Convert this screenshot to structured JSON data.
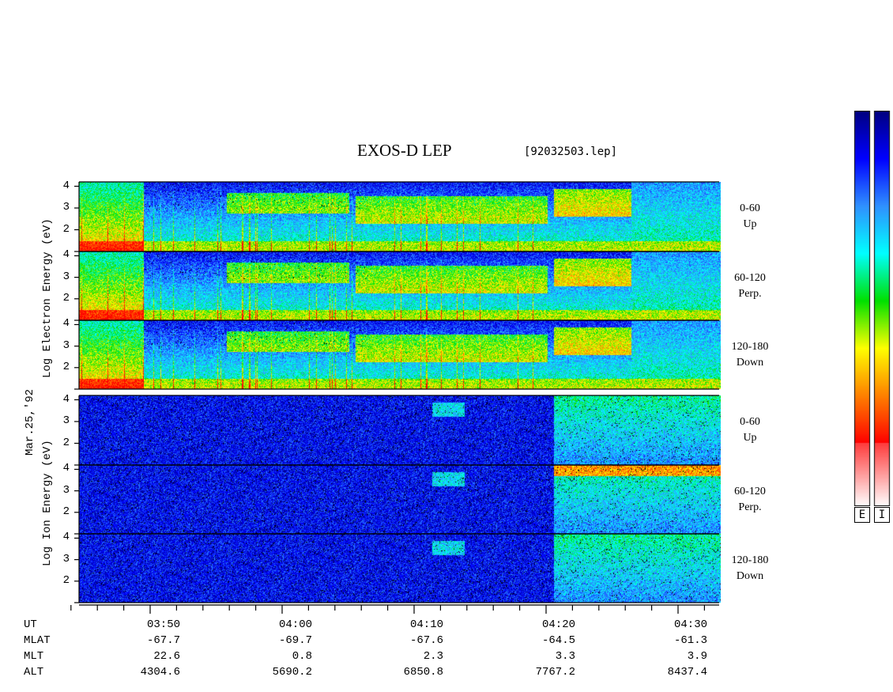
{
  "title": "EXOS-D LEP",
  "filename": "[92032503.lep]",
  "date_label": "Mar.25,'92",
  "electron_axis_label": "Log  Electron  Energy (eV)",
  "ion_axis_label": "Log   Ion  Energy (eV)",
  "colorbar": {
    "left_label": "E",
    "right_label": "I"
  },
  "chart_data": {
    "type": "heatmap",
    "x_ticks": [
      "03:50",
      "04:00",
      "04:10",
      "04:20",
      "04:30"
    ],
    "ylim": [
      1,
      4.2
    ],
    "y_ticks": [
      1,
      2,
      3,
      4
    ],
    "panels": [
      {
        "species": "electron",
        "pitch": "0-60",
        "dir": "Up"
      },
      {
        "species": "electron",
        "pitch": "60-120",
        "dir": "Perp."
      },
      {
        "species": "electron",
        "pitch": "120-180",
        "dir": "Down"
      },
      {
        "species": "ion",
        "pitch": "0-60",
        "dir": "Up"
      },
      {
        "species": "ion",
        "pitch": "60-120",
        "dir": "Perp."
      },
      {
        "species": "ion",
        "pitch": "120-180",
        "dir": "Down"
      }
    ],
    "tick_label_rows": [
      {
        "row": "UT",
        "values": [
          "03:50",
          "04:00",
          "04:10",
          "04:20",
          "04:30"
        ]
      },
      {
        "row": "MLAT",
        "values": [
          "-67.7",
          "-69.7",
          "-67.6",
          "-64.5",
          "-61.3"
        ]
      },
      {
        "row": "MLT",
        "values": [
          "22.6",
          "0.8",
          "2.3",
          "3.3",
          "3.9"
        ]
      },
      {
        "row": "ALT",
        "values": [
          "4304.6",
          "5690.2",
          "6850.8",
          "7767.2",
          "8437.4"
        ]
      }
    ],
    "colormap": [
      "#f8f8f8",
      "#ff0000",
      "#ff8000",
      "#ffff00",
      "#00e000",
      "#00ffff",
      "#3090ff",
      "#0000ff",
      "#000080"
    ]
  }
}
